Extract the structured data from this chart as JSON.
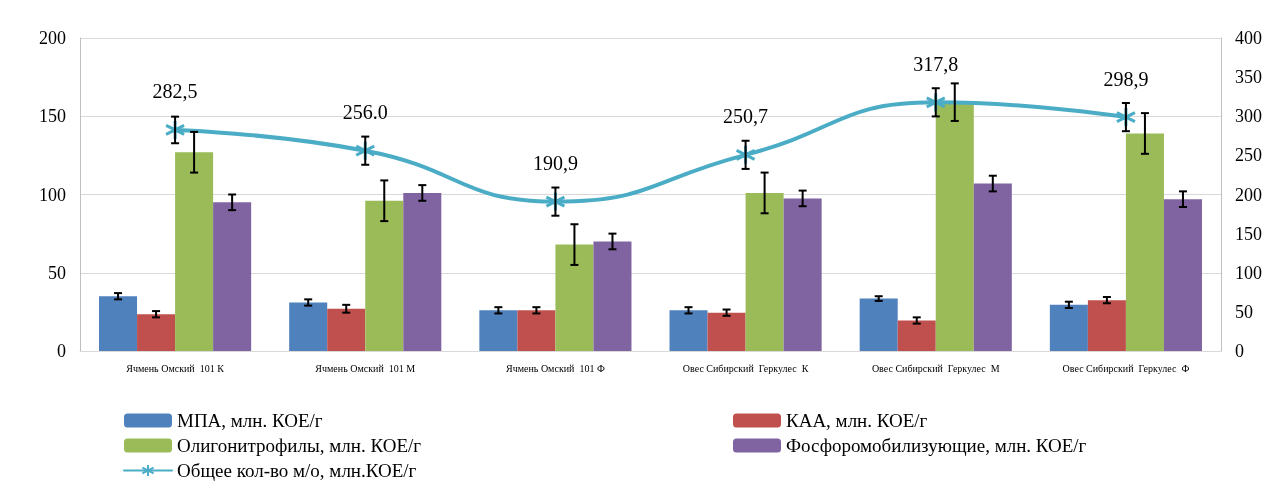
{
  "chart_data": {
    "type": "bar",
    "categories": [
      "Ячмень Омский  101 К",
      "Ячмень Омский  101 М",
      "Ячмень Омский  101 Ф",
      "Овес Сибирский  Геркулес  К",
      "Овес Сибирский  Геркулес  М",
      "Овес Сибирский  Геркулес  Ф"
    ],
    "series": [
      {
        "name": "МПА, млн. КОЕ/г",
        "color": "#4f81bd",
        "values": [
          35,
          31,
          26,
          26,
          33.5,
          29.5
        ],
        "errors": [
          2,
          2,
          2,
          2,
          1.5,
          2
        ]
      },
      {
        "name": "КАА, млн. КОЕ/г",
        "color": "#c0504d",
        "values": [
          23.5,
          27,
          26,
          24.5,
          19.5,
          32.5
        ],
        "errors": [
          2,
          2.5,
          2,
          2,
          2,
          2
        ]
      },
      {
        "name": "Олигонитрофилы, млн. КОЕ/г",
        "color": "#9bbb59",
        "values": [
          127,
          96,
          68,
          101,
          159,
          139
        ],
        "errors": [
          13,
          13,
          13,
          13,
          12,
          13
        ]
      },
      {
        "name": "Фосфоромобилизующие, млн. КОЕ/г",
        "color": "#8064a2",
        "values": [
          95,
          101,
          70,
          97.5,
          107,
          97
        ],
        "errors": [
          5,
          5,
          5,
          5,
          5,
          5
        ]
      },
      {
        "name": "Общее кол-во м/о, млн.КОЕ/г",
        "type": "line",
        "axis": "y2",
        "color": "#4bacc6",
        "values": [
          282.5,
          256.0,
          190.9,
          250.7,
          317.8,
          298.9
        ],
        "errors": [
          17,
          18,
          18,
          18,
          18,
          18
        ],
        "value_labels": [
          "282,5",
          "256.0",
          "190,9",
          "250,7",
          "317,8",
          "298,9"
        ]
      }
    ],
    "ylim": [
      0,
      200
    ],
    "yticks": [
      0,
      50,
      100,
      150,
      200
    ],
    "y2lim": [
      0,
      400
    ],
    "y2ticks": [
      0,
      50,
      100,
      150,
      200,
      250,
      300,
      350,
      400
    ],
    "grid": "y",
    "legend": "bottom",
    "marker": "cross",
    "line_style": "solid"
  }
}
